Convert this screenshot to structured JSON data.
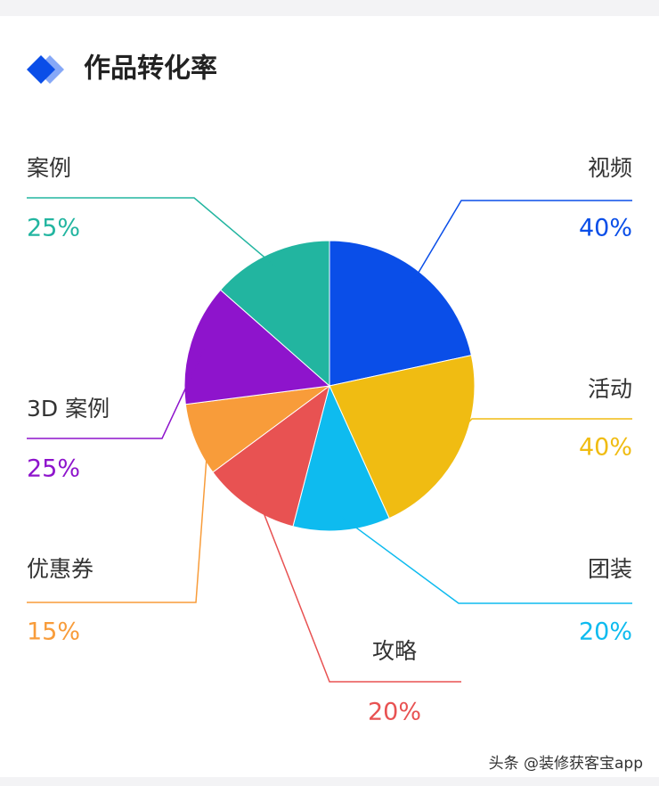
{
  "chart_data": {
    "type": "pie",
    "title": "作品转化率",
    "categories": [
      "视频",
      "活动",
      "团装",
      "攻略",
      "优惠券",
      "3D 案例",
      "案例"
    ],
    "values": [
      40,
      40,
      20,
      20,
      15,
      25,
      25
    ],
    "value_labels": [
      "40%",
      "40%",
      "20%",
      "20%",
      "15%",
      "25%",
      "25%"
    ],
    "colors": [
      "#0a4ee8",
      "#f0bc12",
      "#0ebbef",
      "#e85252",
      "#f89c3a",
      "#8e14cc",
      "#22b5a0"
    ]
  },
  "watermark": "头条 @装修获客宝app"
}
